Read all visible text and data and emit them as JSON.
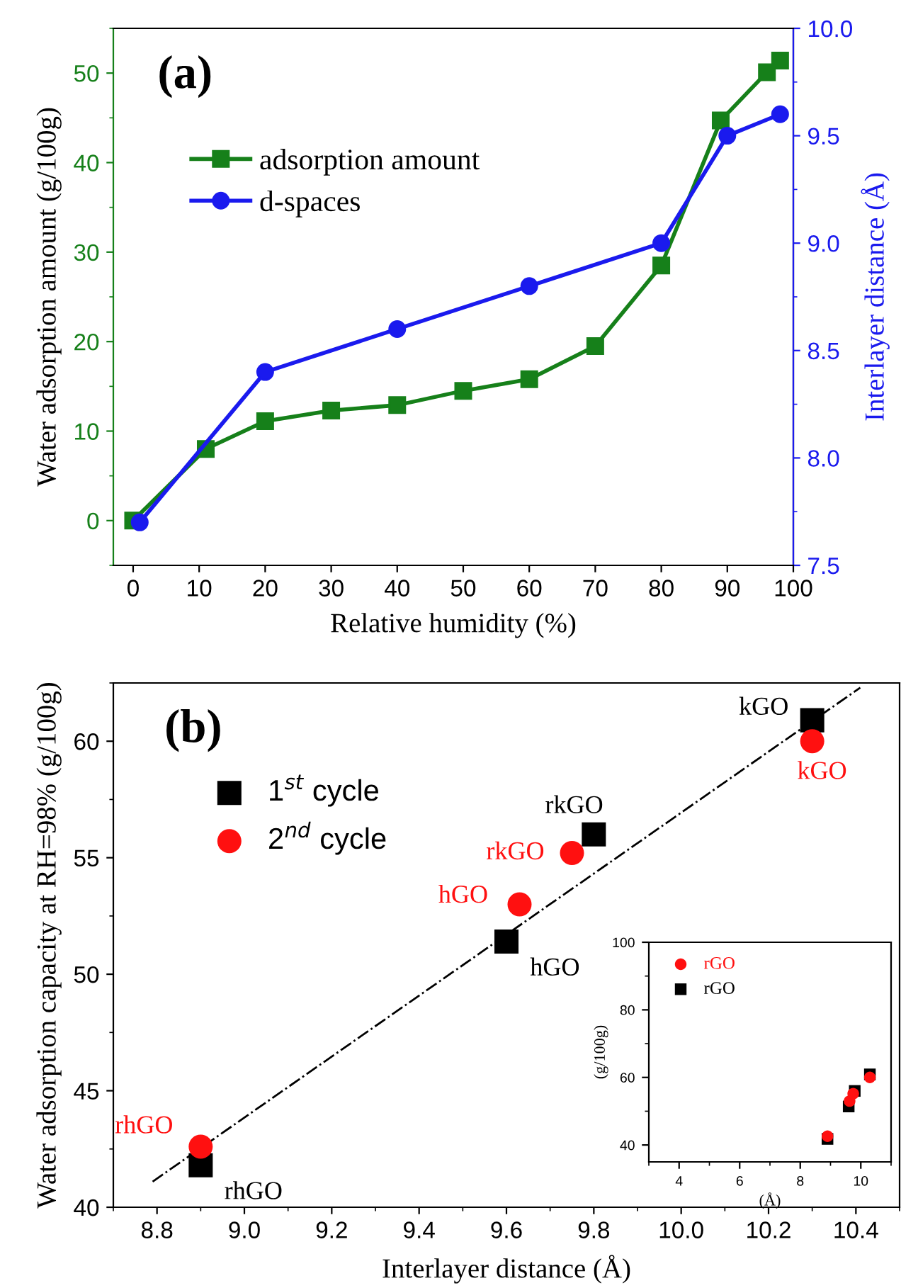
{
  "chart_data": [
    {
      "type": "line",
      "title": "(a)",
      "xlabel": "Relative humidity (%)",
      "ylabel": "Water adsorption amount (g/100g)",
      "y2label": "Interlayer distance (Å)",
      "xlim": [
        -3,
        100
      ],
      "xticks": [
        0,
        10,
        20,
        30,
        40,
        50,
        60,
        70,
        80,
        90,
        100
      ],
      "ylim": [
        -5,
        55
      ],
      "yticks": [
        0,
        10,
        20,
        30,
        40,
        50
      ],
      "y2lim": [
        7.5,
        10.0
      ],
      "y2ticks": [
        7.5,
        {
          "value": 8,
          "label": "8.0"
        },
        8.5,
        {
          "value": 9,
          "label": "9.0"
        },
        9.5,
        {
          "value": 10,
          "label": "10.0"
        }
      ],
      "legend": "top left",
      "grid": false,
      "series": [
        {
          "name": "adsorption amount",
          "color": "#16801a",
          "marker": "square",
          "x": [
            0,
            11,
            20,
            30,
            40,
            50,
            60,
            70,
            80,
            89,
            96,
            98
          ],
          "values": [
            0,
            8.0,
            11.1,
            12.3,
            12.9,
            14.5,
            15.8,
            19.5,
            28.5,
            44.7,
            50.1,
            51.4
          ]
        },
        {
          "name": "d-spaces",
          "color": "#1a1aee",
          "marker": "circle",
          "axis": "y2",
          "x": [
            1,
            20,
            40,
            60,
            80,
            90,
            98
          ],
          "values": [
            7.7,
            8.4,
            8.6,
            8.8,
            9.0,
            9.5,
            9.6
          ]
        }
      ]
    },
    {
      "type": "scatter",
      "title": "(b)",
      "xlabel": "Interlayer distance (Å)",
      "ylabel": "Water adsorption capacity at RH=98% (g/100g)",
      "xlim": [
        8.7,
        10.5
      ],
      "xticks": [
        8.8,
        {
          "value": 9,
          "label": "9.0"
        },
        9.2,
        9.4,
        9.6,
        9.8,
        {
          "value": 10,
          "label": "10.0"
        },
        10.2,
        10.4
      ],
      "ylim": [
        40,
        62.5
      ],
      "yticks": [
        40,
        45,
        50,
        55,
        60
      ],
      "legend": "top left",
      "grid": false,
      "series": [
        {
          "name": "1$^{st}$ cycle",
          "color": "#000000",
          "marker": "square",
          "x": [
            8.9,
            9.6,
            9.8,
            10.3
          ],
          "values": [
            41.8,
            51.4,
            56.0,
            60.9
          ]
        },
        {
          "name": "2$^{nd}$ cycle",
          "color": "#ff1010",
          "marker": "circle",
          "x": [
            8.9,
            9.63,
            9.75,
            10.3
          ],
          "values": [
            42.6,
            53.0,
            55.2,
            60.0
          ]
        },
        {
          "type": "line",
          "color": "#000000",
          "line_style": "dashdot",
          "marker": "none",
          "x": [
            8.79,
            10.41
          ],
          "values": [
            41.1,
            62.3
          ]
        }
      ],
      "annotations": [
        {
          "text": "rhGO",
          "x": 8.9,
          "y": 41.8
        },
        {
          "text": "hGO",
          "x": 9.6,
          "y": 51.4
        },
        {
          "text": "rkGO",
          "x": 9.8,
          "y": 56.0
        },
        {
          "text": "kGO",
          "x": 10.3,
          "y": 60.9
        },
        {
          "text": "rhGO",
          "x": 8.9,
          "y": 42.6
        },
        {
          "text": "hGO",
          "x": 9.63,
          "y": 53.0
        },
        {
          "text": "rkGO",
          "x": 9.75,
          "y": 55.2
        },
        {
          "text": "kGO",
          "x": 10.3,
          "y": 60.0
        }
      ]
    },
    {
      "type": "scatter",
      "xlabel": "(Å)",
      "ylabel": "(g/100g)",
      "xlim": [
        3,
        11
      ],
      "xticks": [
        4,
        6,
        8,
        10
      ],
      "ylim": [
        35,
        100
      ],
      "yticks": [
        40,
        60,
        80,
        100
      ],
      "legend": "top left",
      "grid": false,
      "series": [
        {
          "name": "rGO",
          "color": "#ff1010",
          "marker": "circle",
          "x": [
            8.9,
            9.63,
            9.75,
            10.3
          ],
          "values": [
            42.6,
            53.0,
            55.2,
            60.0
          ]
        },
        {
          "name": "rGO",
          "color": "#000000",
          "marker": "square",
          "x": [
            8.9,
            9.6,
            9.8,
            10.3
          ],
          "values": [
            41.8,
            51.4,
            56.0,
            60.9
          ]
        }
      ]
    }
  ]
}
